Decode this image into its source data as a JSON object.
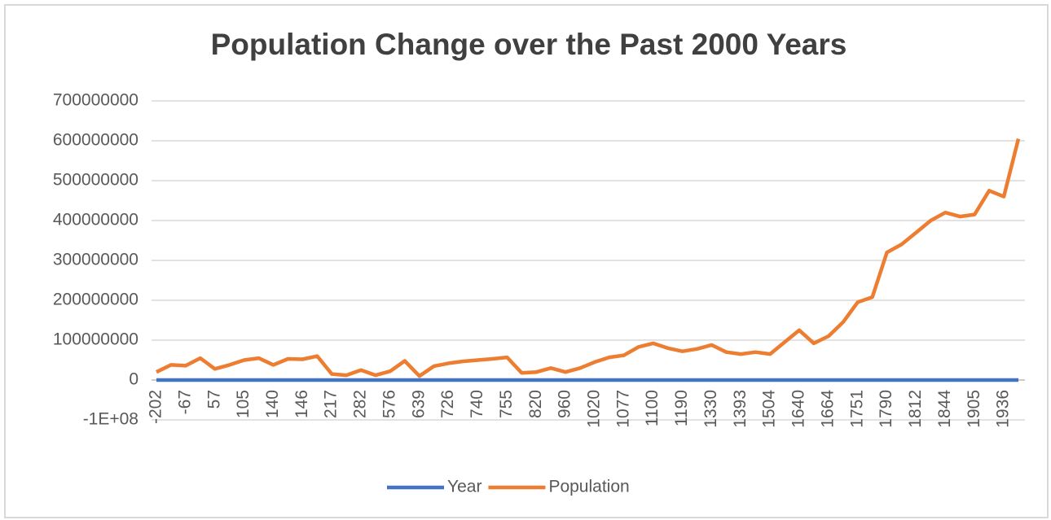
{
  "chart_data": {
    "type": "line",
    "title": "Population Change over the Past 2000 Years",
    "categories": [
      "-202",
      null,
      "-67",
      null,
      "57",
      null,
      "105",
      null,
      "140",
      null,
      "146",
      null,
      "217",
      null,
      "282",
      null,
      "576",
      null,
      "639",
      null,
      "726",
      null,
      "740",
      null,
      "755",
      null,
      "820",
      null,
      "960",
      null,
      "1020",
      null,
      "1077",
      null,
      "1100",
      null,
      "1190",
      null,
      "1330",
      null,
      "1393",
      null,
      "1504",
      null,
      "1640",
      null,
      "1664",
      null,
      "1751",
      null,
      "1790",
      null,
      "1812",
      null,
      "1844",
      null,
      "1905",
      null,
      "1936",
      null
    ],
    "series": [
      {
        "name": "Year",
        "color": "#4472c4",
        "values": [
          -202,
          -135,
          -67,
          0,
          57,
          80,
          105,
          122,
          140,
          143,
          146,
          180,
          217,
          250,
          282,
          430,
          576,
          608,
          639,
          683,
          726,
          733,
          740,
          748,
          755,
          788,
          820,
          890,
          960,
          990,
          1020,
          1048,
          1077,
          1088,
          1100,
          1145,
          1190,
          1260,
          1330,
          1361,
          1393,
          1448,
          1504,
          1572,
          1640,
          1652,
          1664,
          1707,
          1751,
          1770,
          1790,
          1801,
          1812,
          1828,
          1844,
          1874,
          1905,
          1920,
          1936,
          1953
        ]
      },
      {
        "name": "Population",
        "color": "#ed7d31",
        "values": [
          20000000,
          38000000,
          36000000,
          55000000,
          28000000,
          38000000,
          50000000,
          55000000,
          38000000,
          53000000,
          52000000,
          60000000,
          15000000,
          12000000,
          25000000,
          12000000,
          22000000,
          48000000,
          10000000,
          35000000,
          42000000,
          47000000,
          50000000,
          53000000,
          57000000,
          18000000,
          20000000,
          30000000,
          20000000,
          30000000,
          45000000,
          57000000,
          62000000,
          83000000,
          92000000,
          80000000,
          72000000,
          78000000,
          88000000,
          70000000,
          65000000,
          70000000,
          65000000,
          95000000,
          125000000,
          92000000,
          110000000,
          145000000,
          195000000,
          208000000,
          320000000,
          340000000,
          370000000,
          400000000,
          420000000,
          410000000,
          415000000,
          475000000,
          460000000,
          605000000
        ]
      }
    ],
    "ylim": [
      -100000000,
      700000000
    ],
    "yticks": [
      {
        "value": -100000000,
        "label": "-1E+08"
      },
      0,
      100000000,
      200000000,
      300000000,
      400000000,
      500000000,
      600000000,
      700000000
    ],
    "grid": true
  }
}
